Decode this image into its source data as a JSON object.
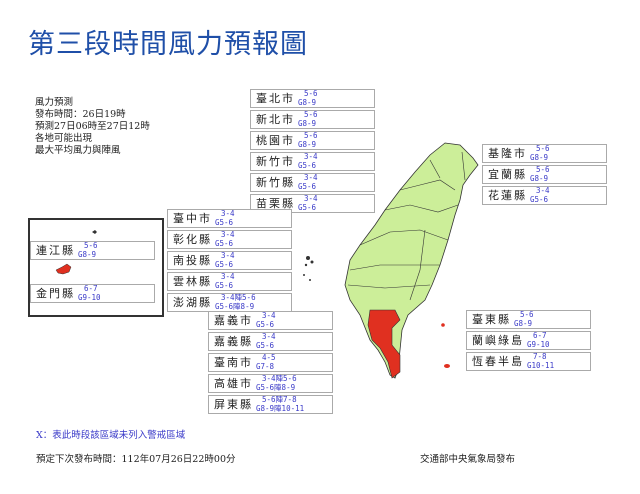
{
  "title": "第三段時間風力預報圖",
  "info": [
    "風力預測",
    "發布時間：26日19時",
    "預測27日06時至27日12時",
    "各地可能出現",
    "最大平均風力與陣風"
  ],
  "colors": {
    "land": "#ccee99",
    "warning": "#e03020",
    "title": "#1f4fa8",
    "values": "#3a3ac8"
  },
  "groups": {
    "north": [
      {
        "name": "臺北市",
        "wind": "5-6",
        "gust": "G8-9"
      },
      {
        "name": "新北市",
        "wind": "5-6",
        "gust": "G8-9"
      },
      {
        "name": "桃園市",
        "wind": "5-6",
        "gust": "G8-9"
      },
      {
        "name": "新竹市",
        "wind": "3-4",
        "gust": "G5-6"
      },
      {
        "name": "新竹縣",
        "wind": "3-4",
        "gust": "G5-6"
      },
      {
        "name": "苗栗縣",
        "wind": "3-4",
        "gust": "G5-6"
      }
    ],
    "central": [
      {
        "name": "臺中市",
        "wind": "3-4",
        "gust": "G5-6"
      },
      {
        "name": "彰化縣",
        "wind": "3-4",
        "gust": "G5-6"
      },
      {
        "name": "南投縣",
        "wind": "3-4",
        "gust": "G5-6"
      },
      {
        "name": "雲林縣",
        "wind": "3-4",
        "gust": "G5-6"
      },
      {
        "name": "澎湖縣",
        "wind": "3-4陣5-6",
        "gust": "G5-6陣8-9"
      }
    ],
    "south": [
      {
        "name": "嘉義市",
        "wind": "3-4",
        "gust": "G5-6"
      },
      {
        "name": "嘉義縣",
        "wind": "3-4",
        "gust": "G5-6"
      },
      {
        "name": "臺南市",
        "wind": "4-5",
        "gust": "G7-8"
      },
      {
        "name": "高雄市",
        "wind": "3-4陣5-6",
        "gust": "G5-6陣8-9"
      },
      {
        "name": "屏東縣",
        "wind": "5-6陣7-8",
        "gust": "G8-9陣10-11"
      }
    ],
    "east": [
      {
        "name": "基隆市",
        "wind": "5-6",
        "gust": "G8-9"
      },
      {
        "name": "宜蘭縣",
        "wind": "5-6",
        "gust": "G8-9"
      },
      {
        "name": "花蓮縣",
        "wind": "3-4",
        "gust": "G5-6"
      }
    ],
    "southeast": [
      {
        "name": "臺東縣",
        "wind": "5-6",
        "gust": "G8-9"
      },
      {
        "name": "蘭嶼綠島",
        "wind": "6-7",
        "gust": "G9-10"
      },
      {
        "name": "恆春半島",
        "wind": "7-8",
        "gust": "G10-11"
      }
    ],
    "lienchiang": [
      {
        "name": "連江縣",
        "wind": "5-6",
        "gust": "G8-9"
      }
    ],
    "kinmen": [
      {
        "name": "金門縣",
        "wind": "6-7",
        "gust": "G9-10"
      }
    ]
  },
  "note": "X：表此時段該區域未列入警戒區域",
  "next_issue": "預定下次發布時間：112年07月26日22時00分",
  "publisher": "交通部中央氣象局發布"
}
